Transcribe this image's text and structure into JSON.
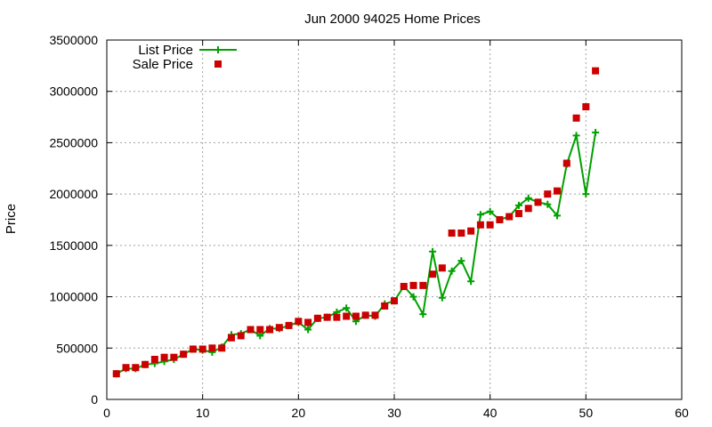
{
  "chart_data": {
    "type": "line",
    "title": "Jun 2000 94025 Home Prices",
    "xlabel": "",
    "ylabel": "Price",
    "xlim": [
      0,
      60
    ],
    "ylim": [
      0,
      3500000
    ],
    "x_ticks": [
      0,
      10,
      20,
      30,
      40,
      50,
      60
    ],
    "y_ticks": [
      0,
      500000,
      1000000,
      1500000,
      2000000,
      2500000,
      3000000,
      3500000
    ],
    "grid": true,
    "legend": "top-left",
    "series": [
      {
        "name": "List Price",
        "style": "line-plus",
        "color": "#00a000",
        "x": [
          1,
          2,
          3,
          4,
          5,
          6,
          7,
          8,
          9,
          10,
          11,
          12,
          13,
          14,
          15,
          16,
          17,
          18,
          19,
          20,
          21,
          22,
          23,
          24,
          25,
          26,
          27,
          28,
          29,
          30,
          31,
          32,
          33,
          34,
          35,
          36,
          37,
          38,
          39,
          40,
          41,
          42,
          43,
          44,
          45,
          46,
          47,
          48,
          49,
          50,
          51
        ],
        "y": [
          250000,
          300000,
          300000,
          340000,
          350000,
          370000,
          390000,
          440000,
          490000,
          480000,
          460000,
          510000,
          630000,
          640000,
          680000,
          620000,
          690000,
          690000,
          720000,
          750000,
          680000,
          790000,
          800000,
          850000,
          890000,
          760000,
          820000,
          810000,
          930000,
          960000,
          1100000,
          1000000,
          830000,
          1440000,
          990000,
          1250000,
          1350000,
          1150000,
          1800000,
          1830000,
          1750000,
          1780000,
          1890000,
          1960000,
          1920000,
          1900000,
          1790000,
          2290000,
          2570000,
          2000000,
          2600000
        ]
      },
      {
        "name": "Sale Price",
        "style": "square-markers",
        "color": "#cc0000",
        "x": [
          1,
          2,
          3,
          4,
          5,
          6,
          7,
          8,
          9,
          10,
          11,
          12,
          13,
          14,
          15,
          16,
          17,
          18,
          19,
          20,
          21,
          22,
          23,
          24,
          25,
          26,
          27,
          28,
          29,
          30,
          31,
          32,
          33,
          34,
          35,
          36,
          37,
          38,
          39,
          40,
          41,
          42,
          43,
          44,
          45,
          46,
          47,
          48,
          49,
          50,
          51
        ],
        "y": [
          250000,
          310000,
          310000,
          340000,
          390000,
          410000,
          410000,
          440000,
          490000,
          490000,
          500000,
          500000,
          600000,
          620000,
          680000,
          680000,
          680000,
          700000,
          720000,
          760000,
          750000,
          790000,
          800000,
          800000,
          810000,
          810000,
          820000,
          820000,
          910000,
          960000,
          1100000,
          1110000,
          1110000,
          1220000,
          1280000,
          1620000,
          1620000,
          1640000,
          1700000,
          1700000,
          1750000,
          1780000,
          1810000,
          1860000,
          1920000,
          2000000,
          2030000,
          2300000,
          2740000,
          2850000,
          3200000
        ]
      }
    ]
  }
}
